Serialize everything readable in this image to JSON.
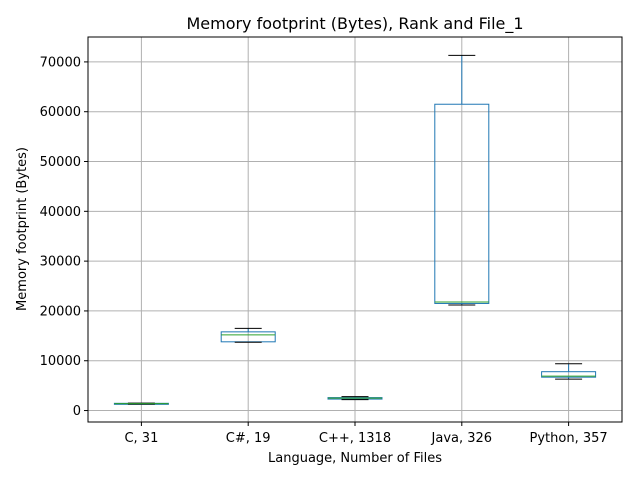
{
  "chart_data": {
    "type": "box",
    "title": "Memory footprint (Bytes), Rank and File_1",
    "xlabel": "Language, Number of Files",
    "ylabel": "Memory footprint (Bytes)",
    "ylim": [
      -2300,
      75000
    ],
    "yticks": [
      0,
      10000,
      20000,
      30000,
      40000,
      50000,
      60000,
      70000
    ],
    "grid": true,
    "colors": {
      "box": "#1f77b4",
      "median": "#2ca02c",
      "whisker_cap": "#000000",
      "grid": "#b0b0b0"
    },
    "categories": [
      "C, 31",
      "C#, 19",
      "C++, 1318",
      "Java, 326",
      "Python, 357"
    ],
    "boxes": [
      {
        "label": "C, 31",
        "whisker_low": 1300,
        "q1": 1350,
        "median": 1400,
        "q3": 1450,
        "whisker_high": 1500
      },
      {
        "label": "C#, 19",
        "whisker_low": 13700,
        "q1": 13800,
        "median": 15200,
        "q3": 15800,
        "whisker_high": 16500
      },
      {
        "label": "C++, 1318",
        "whisker_low": 2200,
        "q1": 2300,
        "median": 2500,
        "q3": 2600,
        "whisker_high": 2800
      },
      {
        "label": "Java, 326",
        "whisker_low": 21200,
        "q1": 21500,
        "median": 21800,
        "q3": 61500,
        "whisker_high": 71300
      },
      {
        "label": "Python, 357",
        "whisker_low": 6300,
        "q1": 6700,
        "median": 6900,
        "q3": 7800,
        "whisker_high": 9400
      }
    ]
  }
}
